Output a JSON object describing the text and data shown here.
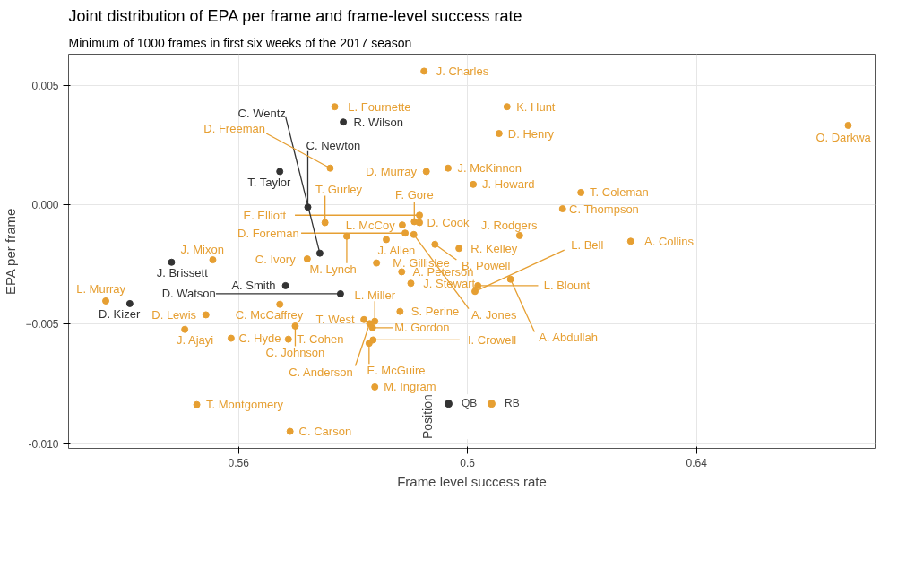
{
  "chart_data": {
    "type": "scatter",
    "title": "Joint distribution of EPA per frame and frame-level success rate",
    "subtitle": "Minimum of 1000 frames in first six weeks of the 2017 season",
    "xlabel": "Frame level success rate",
    "ylabel": "EPA per frame",
    "legend_title": "Position",
    "xlim": [
      0.5303,
      0.6712
    ],
    "ylim": [
      -0.0102,
      0.0063
    ],
    "xticks": [
      0.56,
      0.6,
      0.64
    ],
    "yticks": [
      {
        "value": -0.01,
        "label": "-0.010"
      },
      -0.005,
      {
        "value": 0,
        "label": "0.000"
      },
      0.005
    ],
    "grid": true,
    "legend": "bottom",
    "marker": "circle",
    "series": [
      {
        "name": "QB",
        "color": "#333333",
        "x": [
          0.5783,
          0.5672,
          0.5721,
          0.5742,
          0.5483,
          0.5682,
          0.5778,
          0.541
        ],
        "values": [
          0.00346,
          0.00139,
          -0.0001,
          -0.00203,
          -0.00241,
          -0.00339,
          -0.00373,
          -0.00414
        ]
      },
      {
        "name": "RB",
        "color": "#e69f32",
        "x": [
          0.5924,
          0.5768,
          0.6069,
          0.6055,
          0.6665,
          0.576,
          0.5928,
          0.5966,
          0.601,
          0.6198,
          0.6166,
          0.6091,
          0.6285,
          0.5943,
          0.5985,
          0.5916,
          0.5907,
          0.5916,
          0.5886,
          0.5891,
          0.5858,
          0.5906,
          0.5789,
          0.5751,
          0.5555,
          0.572,
          0.5841,
          0.5885,
          0.5901,
          0.5672,
          0.5368,
          0.5543,
          0.5506,
          0.5587,
          0.5699,
          0.5819,
          0.5838,
          0.5834,
          0.5882,
          0.5829,
          0.5687,
          0.5828,
          0.5835,
          0.5838,
          0.5527,
          0.569,
          0.6018,
          0.6013,
          0.6075
        ],
        "values": [
          0.00559,
          0.0041,
          0.0041,
          0.00298,
          0.00332,
          0.00153,
          0.00139,
          0.00153,
          0.00085,
          0.00051,
          -0.00017,
          -0.00129,
          -0.00153,
          -0.00166,
          -0.00183,
          -0.00044,
          -0.00071,
          -0.00075,
          -0.00085,
          -0.00119,
          -0.00146,
          -0.00125,
          -0.00132,
          -0.00075,
          -0.00231,
          -0.00227,
          -0.00244,
          -0.00281,
          -0.00329,
          -0.00417,
          -0.00403,
          -0.00461,
          -0.00522,
          -0.00559,
          -0.00508,
          -0.00481,
          -0.00488,
          -0.00515,
          -0.00447,
          -0.00498,
          -0.00563,
          -0.0058,
          -0.00566,
          -0.00763,
          -0.00837,
          -0.00949,
          -0.00339,
          -0.00363,
          -0.00312
        ]
      }
    ],
    "annotations": [
      {
        "text": "R. Wilson",
        "x": 0.5783,
        "y": 0.00346
      },
      {
        "text": "T. Taylor",
        "x": 0.5672,
        "y": 0.00139
      },
      {
        "text": "C. Newton",
        "x": 0.5721,
        "y": -0.0001
      },
      {
        "text": "C. Wentz",
        "x": 0.5742,
        "y": -0.00203
      },
      {
        "text": "J. Brissett",
        "x": 0.5483,
        "y": -0.00241
      },
      {
        "text": "A. Smith",
        "x": 0.5682,
        "y": -0.00339
      },
      {
        "text": "D. Watson",
        "x": 0.5778,
        "y": -0.00373
      },
      {
        "text": "D. Kizer",
        "x": 0.541,
        "y": -0.00414
      },
      {
        "text": "J. Charles",
        "x": 0.5924,
        "y": 0.00559
      },
      {
        "text": "L. Fournette",
        "x": 0.5768,
        "y": 0.0041
      },
      {
        "text": "K. Hunt",
        "x": 0.6069,
        "y": 0.0041
      },
      {
        "text": "D. Henry",
        "x": 0.6055,
        "y": 0.00298
      },
      {
        "text": "O. Darkwa",
        "x": 0.6665,
        "y": 0.00332
      },
      {
        "text": "D. Freeman",
        "x": 0.576,
        "y": 0.00153
      },
      {
        "text": "D. Murray",
        "x": 0.5928,
        "y": 0.00139
      },
      {
        "text": "J. McKinnon",
        "x": 0.5966,
        "y": 0.00153
      },
      {
        "text": "J. Howard",
        "x": 0.601,
        "y": 0.00085
      },
      {
        "text": "T. Coleman",
        "x": 0.6198,
        "y": 0.00051
      },
      {
        "text": "C. Thompson",
        "x": 0.6166,
        "y": -0.00017
      },
      {
        "text": "J. Rodgers",
        "x": 0.6091,
        "y": -0.00129
      },
      {
        "text": "A. Collins",
        "x": 0.6285,
        "y": -0.00153
      },
      {
        "text": "B. Powell",
        "x": 0.5943,
        "y": -0.00166
      },
      {
        "text": "R. Kelley",
        "x": 0.5985,
        "y": -0.00183
      },
      {
        "text": "E. Elliott",
        "x": 0.5916,
        "y": -0.00044
      },
      {
        "text": "F. Gore",
        "x": 0.5907,
        "y": -0.00071
      },
      {
        "text": "D. Cook",
        "x": 0.5916,
        "y": -0.00075
      },
      {
        "text": "L. McCoy",
        "x": 0.5886,
        "y": -0.00085
      },
      {
        "text": "D. Foreman",
        "x": 0.5891,
        "y": -0.00119
      },
      {
        "text": "J. Allen",
        "x": 0.5858,
        "y": -0.00146
      },
      {
        "text": "A. Jones",
        "x": 0.5906,
        "y": -0.00125
      },
      {
        "text": "M. Lynch",
        "x": 0.5789,
        "y": -0.00132
      },
      {
        "text": "T. Gurley",
        "x": 0.5751,
        "y": -0.00075
      },
      {
        "text": "J. Mixon",
        "x": 0.5555,
        "y": -0.00231
      },
      {
        "text": "C. Ivory",
        "x": 0.572,
        "y": -0.00227
      },
      {
        "text": "M. Gillislee",
        "x": 0.5841,
        "y": -0.00244
      },
      {
        "text": "A. Peterson",
        "x": 0.5885,
        "y": -0.00281
      },
      {
        "text": "J. Stewart",
        "x": 0.5901,
        "y": -0.00329
      },
      {
        "text": "C. McCaffrey",
        "x": 0.5672,
        "y": -0.00417
      },
      {
        "text": "L. Murray",
        "x": 0.5368,
        "y": -0.00403
      },
      {
        "text": "D. Lewis",
        "x": 0.5543,
        "y": -0.00461
      },
      {
        "text": "J. Ajayi",
        "x": 0.5506,
        "y": -0.00522
      },
      {
        "text": "C. Hyde",
        "x": 0.5587,
        "y": -0.00559
      },
      {
        "text": "C. Johnson",
        "x": 0.5699,
        "y": -0.00508
      },
      {
        "text": "T. West",
        "x": 0.5819,
        "y": -0.00481
      },
      {
        "text": "L. Miller",
        "x": 0.5838,
        "y": -0.00488
      },
      {
        "text": "M. Gordon",
        "x": 0.5834,
        "y": -0.00515
      },
      {
        "text": "S. Perine",
        "x": 0.5882,
        "y": -0.00447
      },
      {
        "text": "C. Anderson",
        "x": 0.5829,
        "y": -0.00498
      },
      {
        "text": "T. Cohen",
        "x": 0.5687,
        "y": -0.00563
      },
      {
        "text": "E. McGuire",
        "x": 0.5828,
        "y": -0.0058
      },
      {
        "text": "I. Crowell",
        "x": 0.5835,
        "y": -0.00566
      },
      {
        "text": "M. Ingram",
        "x": 0.5838,
        "y": -0.00763
      },
      {
        "text": "T. Montgomery",
        "x": 0.5527,
        "y": -0.00837
      },
      {
        "text": "C. Carson",
        "x": 0.569,
        "y": -0.00949
      },
      {
        "text": "L. Blount",
        "x": 0.6018,
        "y": -0.00339
      },
      {
        "text": "L. Bell",
        "x": 0.6013,
        "y": -0.00363
      },
      {
        "text": "A. Abdullah",
        "x": 0.6075,
        "y": -0.00312
      }
    ]
  }
}
